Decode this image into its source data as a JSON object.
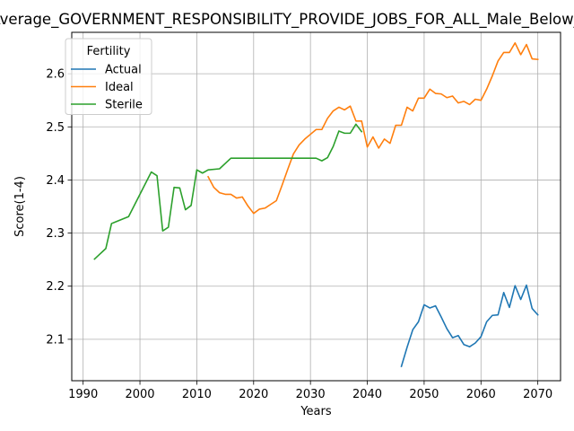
{
  "chart_data": {
    "type": "line",
    "title": "Average_GOVERNMENT_RESPONSIBILITY_PROVIDE_JOBS_FOR_ALL_Male_Below_Average",
    "xlabel": "Years",
    "ylabel": "Score(1-4)",
    "xlim": [
      1988,
      2074
    ],
    "ylim": [
      2.022,
      2.678
    ],
    "xticks": [
      1990,
      2000,
      2010,
      2020,
      2030,
      2040,
      2050,
      2060,
      2070
    ],
    "yticks": [
      2.1,
      2.2,
      2.3,
      2.4,
      2.5,
      2.6
    ],
    "grid": true,
    "legend": {
      "title": "Fertility",
      "position": "top-left"
    },
    "series": [
      {
        "name": "Actual",
        "color": "#1f77b4",
        "points": [
          [
            2046,
            2.049
          ],
          [
            2047,
            2.085
          ],
          [
            2048,
            2.118
          ],
          [
            2049,
            2.133
          ],
          [
            2050,
            2.165
          ],
          [
            2051,
            2.159
          ],
          [
            2052,
            2.163
          ],
          [
            2053,
            2.142
          ],
          [
            2054,
            2.12
          ],
          [
            2055,
            2.103
          ],
          [
            2056,
            2.107
          ],
          [
            2057,
            2.09
          ],
          [
            2058,
            2.086
          ],
          [
            2059,
            2.093
          ],
          [
            2060,
            2.105
          ],
          [
            2061,
            2.133
          ],
          [
            2062,
            2.145
          ],
          [
            2063,
            2.146
          ],
          [
            2064,
            2.188
          ],
          [
            2065,
            2.16
          ],
          [
            2066,
            2.201
          ],
          [
            2067,
            2.175
          ],
          [
            2068,
            2.202
          ],
          [
            2069,
            2.158
          ],
          [
            2070,
            2.146
          ]
        ]
      },
      {
        "name": "Ideal",
        "color": "#ff7f0e",
        "points": [
          [
            2012,
            2.406
          ],
          [
            2013,
            2.386
          ],
          [
            2014,
            2.376
          ],
          [
            2015,
            2.373
          ],
          [
            2016,
            2.373
          ],
          [
            2017,
            2.366
          ],
          [
            2018,
            2.368
          ],
          [
            2019,
            2.351
          ],
          [
            2020,
            2.337
          ],
          [
            2021,
            2.345
          ],
          [
            2022,
            2.347
          ],
          [
            2023,
            2.354
          ],
          [
            2024,
            2.361
          ],
          [
            2025,
            2.39
          ],
          [
            2026,
            2.42
          ],
          [
            2027,
            2.449
          ],
          [
            2028,
            2.466
          ],
          [
            2029,
            2.477
          ],
          [
            2030,
            2.486
          ],
          [
            2031,
            2.495
          ],
          [
            2032,
            2.495
          ],
          [
            2033,
            2.516
          ],
          [
            2034,
            2.53
          ],
          [
            2035,
            2.537
          ],
          [
            2036,
            2.532
          ],
          [
            2037,
            2.539
          ],
          [
            2038,
            2.511
          ],
          [
            2039,
            2.511
          ],
          [
            2040,
            2.462
          ],
          [
            2041,
            2.481
          ],
          [
            2042,
            2.46
          ],
          [
            2043,
            2.477
          ],
          [
            2044,
            2.469
          ],
          [
            2045,
            2.503
          ],
          [
            2046,
            2.503
          ],
          [
            2047,
            2.537
          ],
          [
            2048,
            2.53
          ],
          [
            2049,
            2.554
          ],
          [
            2050,
            2.554
          ],
          [
            2051,
            2.571
          ],
          [
            2052,
            2.563
          ],
          [
            2053,
            2.562
          ],
          [
            2054,
            2.555
          ],
          [
            2055,
            2.558
          ],
          [
            2056,
            2.545
          ],
          [
            2057,
            2.548
          ],
          [
            2058,
            2.542
          ],
          [
            2059,
            2.552
          ],
          [
            2060,
            2.55
          ],
          [
            2061,
            2.571
          ],
          [
            2062,
            2.596
          ],
          [
            2063,
            2.624
          ],
          [
            2064,
            2.64
          ],
          [
            2065,
            2.64
          ],
          [
            2066,
            2.658
          ],
          [
            2067,
            2.636
          ],
          [
            2068,
            2.655
          ],
          [
            2069,
            2.628
          ],
          [
            2070,
            2.627
          ]
        ]
      },
      {
        "name": "Sterile",
        "color": "#2ca02c",
        "points": [
          [
            1992,
            2.251
          ],
          [
            1994,
            2.271
          ],
          [
            1995,
            2.318
          ],
          [
            1998,
            2.331
          ],
          [
            2002,
            2.415
          ],
          [
            2003,
            2.408
          ],
          [
            2004,
            2.304
          ],
          [
            2005,
            2.311
          ],
          [
            2006,
            2.386
          ],
          [
            2007,
            2.385
          ],
          [
            2008,
            2.344
          ],
          [
            2009,
            2.352
          ],
          [
            2010,
            2.419
          ],
          [
            2011,
            2.413
          ],
          [
            2012,
            2.419
          ],
          [
            2014,
            2.421
          ],
          [
            2016,
            2.441
          ],
          [
            2031,
            2.441
          ],
          [
            2032,
            2.436
          ],
          [
            2033,
            2.442
          ],
          [
            2034,
            2.463
          ],
          [
            2035,
            2.492
          ],
          [
            2036,
            2.488
          ],
          [
            2037,
            2.488
          ],
          [
            2038,
            2.505
          ],
          [
            2039,
            2.491
          ]
        ]
      }
    ]
  }
}
